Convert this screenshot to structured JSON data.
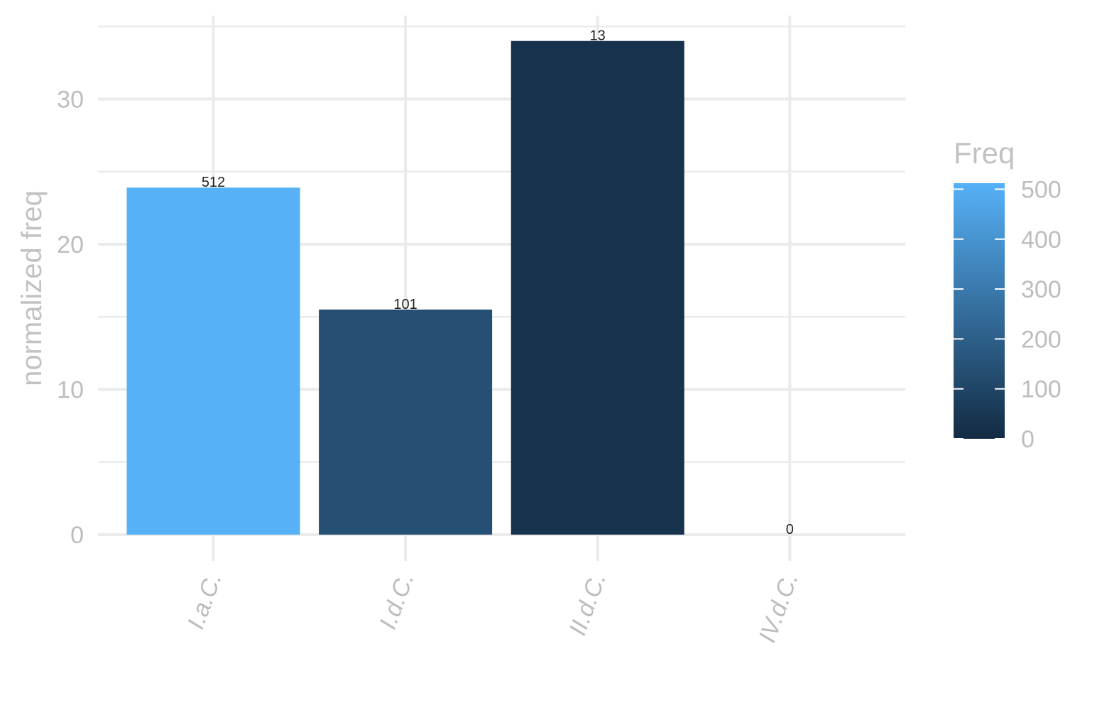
{
  "chart_data": {
    "type": "bar",
    "categories": [
      "I.a.C.",
      "I.d.C.",
      "II.d.C.",
      "IV.d.C."
    ],
    "values": [
      23.9,
      15.5,
      34.0,
      0
    ],
    "freq": [
      512,
      101,
      13,
      0
    ],
    "bar_labels": [
      "512",
      "101",
      "13",
      "0"
    ],
    "xlabel": "",
    "ylabel": "normalized freq",
    "ylim": [
      0,
      35.5
    ],
    "yticks": [
      0,
      10,
      20,
      30
    ],
    "grid": true,
    "legend": {
      "title": "Freq",
      "position": "right",
      "ticks": [
        0,
        100,
        200,
        300,
        400,
        500
      ],
      "range": [
        0,
        512
      ],
      "colors": [
        "#132b43",
        "#56b1f7"
      ]
    }
  }
}
